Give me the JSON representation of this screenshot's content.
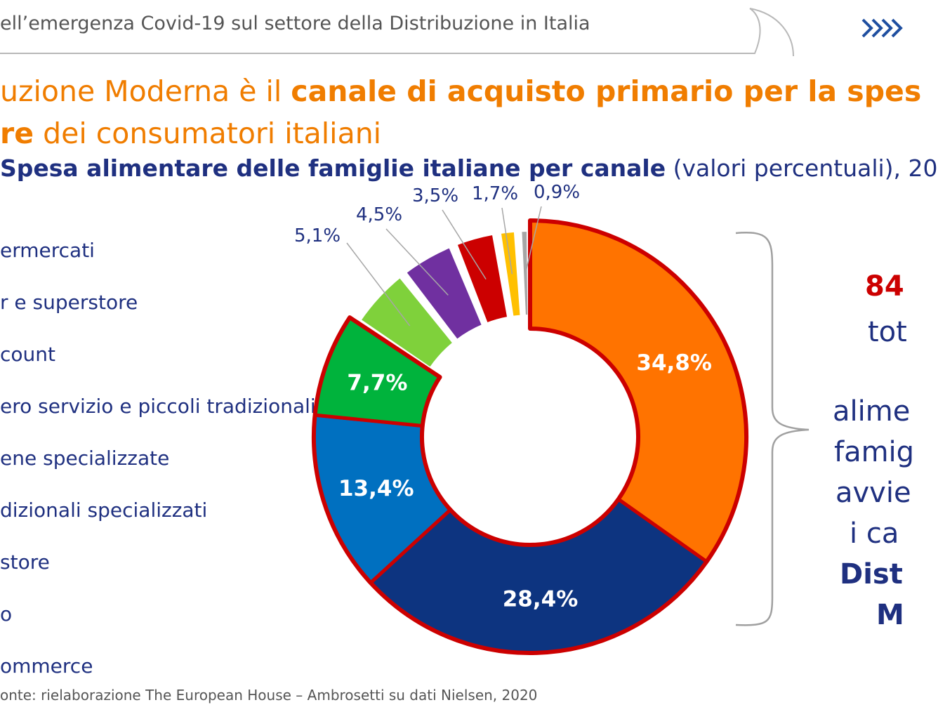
{
  "header": {
    "text": "ell’emergenza Covid-19 sul settore della Distribuzione in Italia"
  },
  "title": {
    "line1_normal": "uzione Moderna è il ",
    "line1_bold": "canale di acquisto primario per la spes",
    "line2_bold": "re",
    "line2_normal": " dei consumatori italiani"
  },
  "chart_data": {
    "type": "donut",
    "title_bold": "Spesa alimentare delle famiglie italiane per canale",
    "title_normal": " (valori percentuali), 20",
    "legend": [
      "ermercati",
      "r e superstore",
      "count",
      "ero servizio e piccoli tradizionali",
      "ene specializzate",
      "dizionali specializzati",
      "store",
      "o",
      "ommerce"
    ],
    "slices": [
      {
        "value": 34.8,
        "label": "34,8%",
        "color": "#ff7300"
      },
      {
        "value": 28.4,
        "label": "28,4%",
        "color": "#0d3480"
      },
      {
        "value": 13.4,
        "label": "13,4%",
        "color": "#0070c0"
      },
      {
        "value": 7.7,
        "label": "7,7%",
        "color": "#00b33c"
      },
      {
        "value": 5.1,
        "label": "5,1%",
        "color": "#7fd13b"
      },
      {
        "value": 4.5,
        "label": "4,5%",
        "color": "#7030a0"
      },
      {
        "value": 3.5,
        "label": "3,5%",
        "color": "#cc0000"
      },
      {
        "value": 1.7,
        "label": "1,7%",
        "color": "#ffc000"
      },
      {
        "value": 0.9,
        "label": "0,9%",
        "color": "#a6a6a6"
      }
    ],
    "highlight_border_color": "#cc0000"
  },
  "callout": {
    "line1": "84",
    "line2": "tot",
    "line3": "alime",
    "line4": "famig",
    "line5": "avvie",
    "line6": "i ca",
    "line7": "Dist",
    "line8": "M"
  },
  "source": {
    "text": "onte: rielaborazione The European House – Ambrosetti su dati Nielsen, 2020"
  },
  "colors": {
    "orange_title": "#f07d00",
    "navy_text": "#1f3080",
    "red_accent": "#cc0000"
  }
}
